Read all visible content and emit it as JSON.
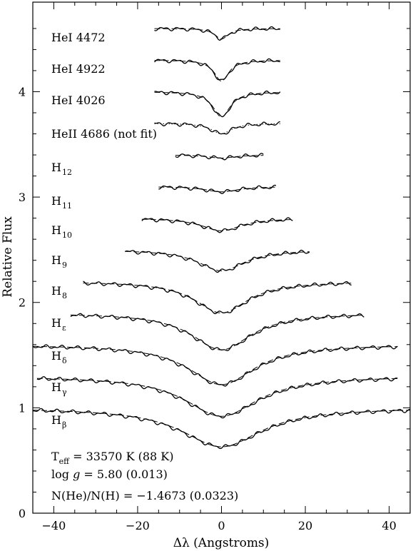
{
  "chart_data": {
    "type": "line",
    "title": "",
    "xlabel": "Δλ (Angstroms)",
    "ylabel": "Relative Flux",
    "xlim": [
      -45,
      45
    ],
    "ylim": [
      0,
      4.85
    ],
    "grid": false,
    "x_ticks": [
      -40,
      -20,
      0,
      20,
      40
    ],
    "x_tick_labels": [
      "−40",
      "−20",
      "0",
      "20",
      "40"
    ],
    "y_ticks": [
      0,
      1,
      2,
      3,
      4
    ],
    "y_tick_labels": [
      "0",
      "1",
      "2",
      "3",
      "4"
    ],
    "series_styles": [
      "observed (solid)",
      "model fit (dashed)"
    ],
    "lines": [
      {
        "label": "HeI 4472",
        "continuum": 4.6,
        "depth": 0.1,
        "width": 2.0,
        "xmin": -16,
        "xmax": 14,
        "model_ref": "fit"
      },
      {
        "label": "HeI 4922",
        "continuum": 4.3,
        "depth": 0.2,
        "width": 2.2,
        "xmin": -16,
        "xmax": 14,
        "model_ref": "fit"
      },
      {
        "label": "HeI 4026",
        "continuum": 4.0,
        "depth": 0.24,
        "width": 2.6,
        "xmin": -16,
        "xmax": 14,
        "model_ref": "fit"
      },
      {
        "label": "HeII 4686 (not fit)",
        "continuum": 3.7,
        "depth": 0.1,
        "width": 3.0,
        "xmin": -16,
        "xmax": 14,
        "model_ref": "dotted"
      },
      {
        "label": "H",
        "sub": "12",
        "continuum": 3.4,
        "depth": 0.03,
        "width": 4,
        "xmin": -11,
        "xmax": 10,
        "model_ref": "fit"
      },
      {
        "label": "H",
        "sub": "11",
        "continuum": 3.1,
        "depth": 0.05,
        "width": 5,
        "xmin": -15,
        "xmax": 13,
        "model_ref": "fit"
      },
      {
        "label": "H",
        "sub": "10",
        "continuum": 2.8,
        "depth": 0.12,
        "width": 6,
        "xmin": -19,
        "xmax": 17,
        "model_ref": "fit"
      },
      {
        "label": "H",
        "sub": "9",
        "continuum": 2.5,
        "depth": 0.2,
        "width": 7,
        "xmin": -23,
        "xmax": 21,
        "model_ref": "fit"
      },
      {
        "label": "H",
        "sub": "8",
        "continuum": 2.2,
        "depth": 0.3,
        "width": 8,
        "xmin": -33,
        "xmax": 31,
        "model_ref": "fit"
      },
      {
        "label": "H",
        "sub": "ε",
        "continuum": 1.9,
        "depth": 0.35,
        "width": 9,
        "xmin": -36,
        "xmax": 34,
        "model_ref": "fit"
      },
      {
        "label": "H",
        "sub": "δ",
        "continuum": 1.6,
        "depth": 0.38,
        "width": 10,
        "xmin": -45,
        "xmax": 42,
        "model_ref": "fit"
      },
      {
        "label": "H",
        "sub": "γ",
        "continuum": 1.3,
        "depth": 0.38,
        "width": 11,
        "xmin": -44,
        "xmax": 42,
        "model_ref": "fit"
      },
      {
        "label": "H",
        "sub": "β",
        "continuum": 1.0,
        "depth": 0.37,
        "width": 12,
        "xmin": -45,
        "xmax": 45,
        "model_ref": "fit"
      }
    ],
    "annotations": {
      "teff_label": "T",
      "teff_sub": "eff",
      "teff_value": " = 33570 K (88 K)",
      "logg_prefix": "log ",
      "logg_g": "g",
      "logg_value": " = 5.80 (0.013)",
      "nhe": "N(He)/N(H) = −1.4673 (0.0323)"
    }
  }
}
